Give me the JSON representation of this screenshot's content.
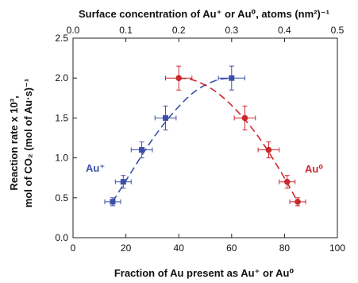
{
  "chart_data": {
    "type": "scatter",
    "xlabel": "Fraction of Au present as Au⁺ or Au⁰",
    "ylabel_line1": "Reaction rate x 10³,",
    "ylabel_line2": "mol of CO₂ (mol of Au·s)⁻¹",
    "top_xlabel": "Surface concentration of Au⁺ or Au⁰, atoms (nm²)⁻¹",
    "xlim": [
      0,
      100
    ],
    "ylim": [
      0,
      2.5
    ],
    "top_xlim": [
      0,
      0.5
    ],
    "x_ticks": [
      "0",
      "20",
      "40",
      "60",
      "80",
      "100"
    ],
    "y_ticks": [
      "0.0",
      "0.5",
      "1.0",
      "1.5",
      "2.0",
      "2.5"
    ],
    "top_x_ticks": [
      "0.0",
      "0.1",
      "0.2",
      "0.3",
      "0.4",
      "0.5"
    ],
    "grid": false,
    "series": [
      {
        "name": "Au⁺",
        "color": "#3b4fa8",
        "marker": "square",
        "points": [
          {
            "x": 15,
            "y": 0.45,
            "xerr": 3,
            "yerr": 0.05
          },
          {
            "x": 19,
            "y": 0.7,
            "xerr": 3,
            "yerr": 0.08
          },
          {
            "x": 26,
            "y": 1.1,
            "xerr": 4,
            "yerr": 0.1
          },
          {
            "x": 35,
            "y": 1.5,
            "xerr": 4,
            "yerr": 0.15
          },
          {
            "x": 60,
            "y": 2.0,
            "xerr": 5,
            "yerr": 0.15
          }
        ],
        "fit": [
          [
            15,
            0.45
          ],
          [
            22,
            0.82
          ],
          [
            30,
            1.23
          ],
          [
            38,
            1.57
          ],
          [
            46,
            1.83
          ],
          [
            54,
            1.97
          ],
          [
            60,
            2.0
          ]
        ]
      },
      {
        "name": "Au⁰",
        "color": "#c9282d",
        "marker": "circle",
        "points": [
          {
            "x": 40,
            "y": 2.0,
            "xerr": 5,
            "yerr": 0.15
          },
          {
            "x": 65,
            "y": 1.5,
            "xerr": 4,
            "yerr": 0.15
          },
          {
            "x": 74,
            "y": 1.1,
            "xerr": 4,
            "yerr": 0.1
          },
          {
            "x": 81,
            "y": 0.7,
            "xerr": 3,
            "yerr": 0.08
          },
          {
            "x": 85,
            "y": 0.45,
            "xerr": 3,
            "yerr": 0.05
          }
        ],
        "fit": [
          [
            40,
            2.0
          ],
          [
            46,
            1.97
          ],
          [
            54,
            1.83
          ],
          [
            62,
            1.59
          ],
          [
            70,
            1.27
          ],
          [
            78,
            0.86
          ],
          [
            85,
            0.45
          ]
        ]
      }
    ]
  }
}
